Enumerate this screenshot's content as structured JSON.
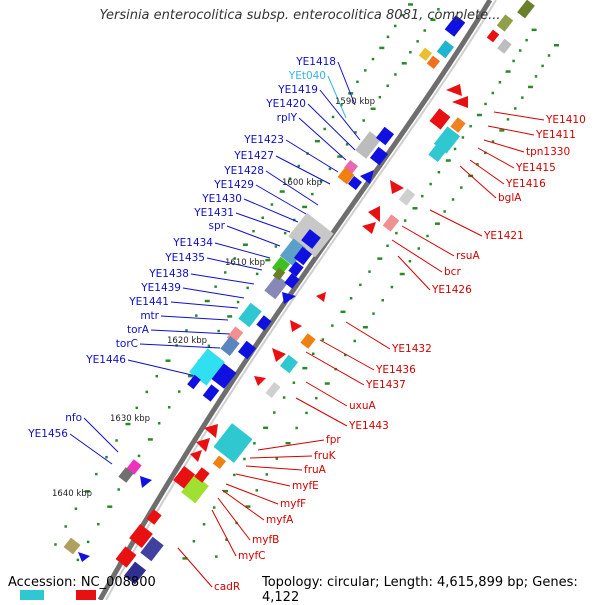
{
  "title": "Yersinia enterocolitica subsp. enterocolitica 8081, complete...",
  "footer": {
    "accession": "Accession: NC_008800",
    "summary": "Topology: circular; Length: 4,615,899 bp; Genes: 4,122"
  },
  "colors": {
    "left_label": "#1010c8",
    "trna_label": "#38b4e8",
    "right_label": "#d40000",
    "backbone": "#707070",
    "forward_arrow": "#1010e0",
    "reverse_arrow": "#e81010",
    "tick": "#2a8a2a"
  },
  "scale_labels": [
    "1590 kbp",
    "1600 kbp",
    "1610 kbp",
    "1620 kbp",
    "1630 kbp",
    "1640 kbp"
  ],
  "left_labels": [
    "YE1418",
    "YEt040",
    "YE1419",
    "YE1420",
    "rplY",
    "YE1423",
    "YE1427",
    "YE1428",
    "YE1429",
    "YE1430",
    "YE1431",
    "spr",
    "YE1434",
    "YE1435",
    "YE1438",
    "YE1439",
    "YE1441",
    "mtr",
    "torA",
    "torC",
    "YE1446",
    "nfo",
    "YE1456"
  ],
  "right_labels": [
    "YE1410",
    "YE1411",
    "tpn1330",
    "YE1415",
    "YE1416",
    "bglA",
    "YE1421",
    "rsuA",
    "bcr",
    "YE1426",
    "YE1432",
    "YE1436",
    "YE1437",
    "uxuA",
    "YE1443",
    "fpr",
    "fruK",
    "fruA",
    "myfE",
    "myfF",
    "myfA",
    "myfB",
    "myfC",
    "cadR"
  ]
}
